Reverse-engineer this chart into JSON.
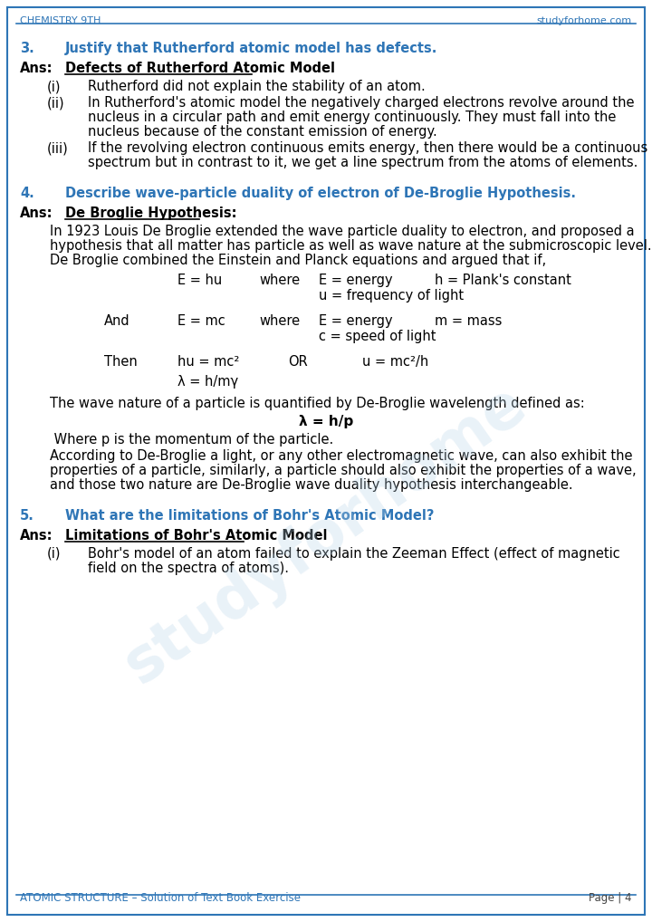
{
  "header_left": "CHEMISTRY 9TH",
  "header_right": "studyforhome.com",
  "footer_left": "ATOMIC STRUCTURE – Solution of Text Book Exercise",
  "footer_right": "Page | 4",
  "header_color": "#2e75b6",
  "question_color": "#2e75b6",
  "body_color": "#000000",
  "bg_color": "#ffffff",
  "border_color": "#2e75b6",
  "watermark_text": "studyforhome",
  "q3_num": "3.",
  "q3_text": "Justify that Rutherford atomic model has defects.",
  "q3_ans_label": "Ans:",
  "q3_ans_heading": "Defects of Rutherford Atomic Model",
  "q3_i_label": "(i)",
  "q3_i_text": "Rutherford did not explain the stability of an atom.",
  "q3_ii_label": "(ii)",
  "q3_ii_text_1": "In Rutherford's atomic model the negatively charged electrons revolve around the",
  "q3_ii_text_2": "nucleus in a circular path and emit energy continuously. They must fall into the",
  "q3_ii_text_3": "nucleus because of the constant emission of energy.",
  "q3_iii_label": "(iii)",
  "q3_iii_text_1": "If the revolving electron continuous emits energy, then there would be a continuous",
  "q3_iii_text_2": "spectrum but in contrast to it, we get a line spectrum from the atoms of elements.",
  "q4_num": "4.",
  "q4_text": "Describe wave-particle duality of electron of De-Broglie Hypothesis.",
  "q4_ans_label": "Ans:",
  "q4_ans_heading": "De Broglie Hypothesis:",
  "q4_body1_1": "In 1923 Louis De Broglie extended the wave particle duality to electron, and proposed a",
  "q4_body1_2": "hypothesis that all matter has particle as well as wave nature at the submicroscopic level.",
  "q4_body1_3": "De Broglie combined the Einstein and Planck equations and argued that if,",
  "q4_eq1a": "E = hu",
  "q4_eq1b": "where",
  "q4_eq1c": "E = energy",
  "q4_eq1d": "h = Plank's constant",
  "q4_eq1e": "u = frequency of light",
  "q4_eq2a": "And",
  "q4_eq2b": "E = mc",
  "q4_eq2c": "where",
  "q4_eq2d": "E = energy",
  "q4_eq2e": "m = mass",
  "q4_eq2f": "c = speed of light",
  "q4_eq3a": "Then",
  "q4_eq3b": "hu = mc²",
  "q4_eq3c": "OR",
  "q4_eq3d": "u = mc²/h",
  "q4_eq4": "λ = h/mγ",
  "q4_body2": "The wave nature of a particle is quantified by De-Broglie wavelength defined as:",
  "q4_lambda": "λ = h/p",
  "q4_body3": " Where p is the momentum of the particle.",
  "q4_body4_1": "According to De-Broglie a light, or any other electromagnetic wave, can also exhibit the",
  "q4_body4_2": "properties of a particle, similarly, a particle should also exhibit the properties of a wave,",
  "q4_body4_3": "and those two nature are De-Broglie wave duality hypothesis interchangeable.",
  "q5_num": "5.",
  "q5_text": "What are the limitations of Bohr's Atomic Model?",
  "q5_ans_label": "Ans:",
  "q5_ans_heading": "Limitations of Bohr's Atomic Model",
  "q5_ans_heading_colon": ":",
  "q5_i_label": "(i)",
  "q5_i_text_1": "Bohr's model of an atom failed to explain the Zeeman Effect (effect of magnetic",
  "q5_i_text_2": "field on the spectra of atoms)."
}
